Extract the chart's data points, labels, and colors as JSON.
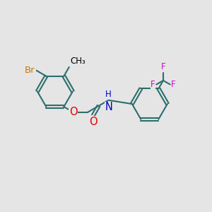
{
  "bg_color": "#e5e5e5",
  "bond_color": "#2d6e6e",
  "bond_width": 1.5,
  "atom_colors": {
    "Br": "#cc7700",
    "O": "#dd0000",
    "N": "#0000cc",
    "F": "#dd00dd",
    "C": "#000000",
    "H": "#0000cc"
  },
  "font_size": 9.5,
  "small_font": 8.5
}
